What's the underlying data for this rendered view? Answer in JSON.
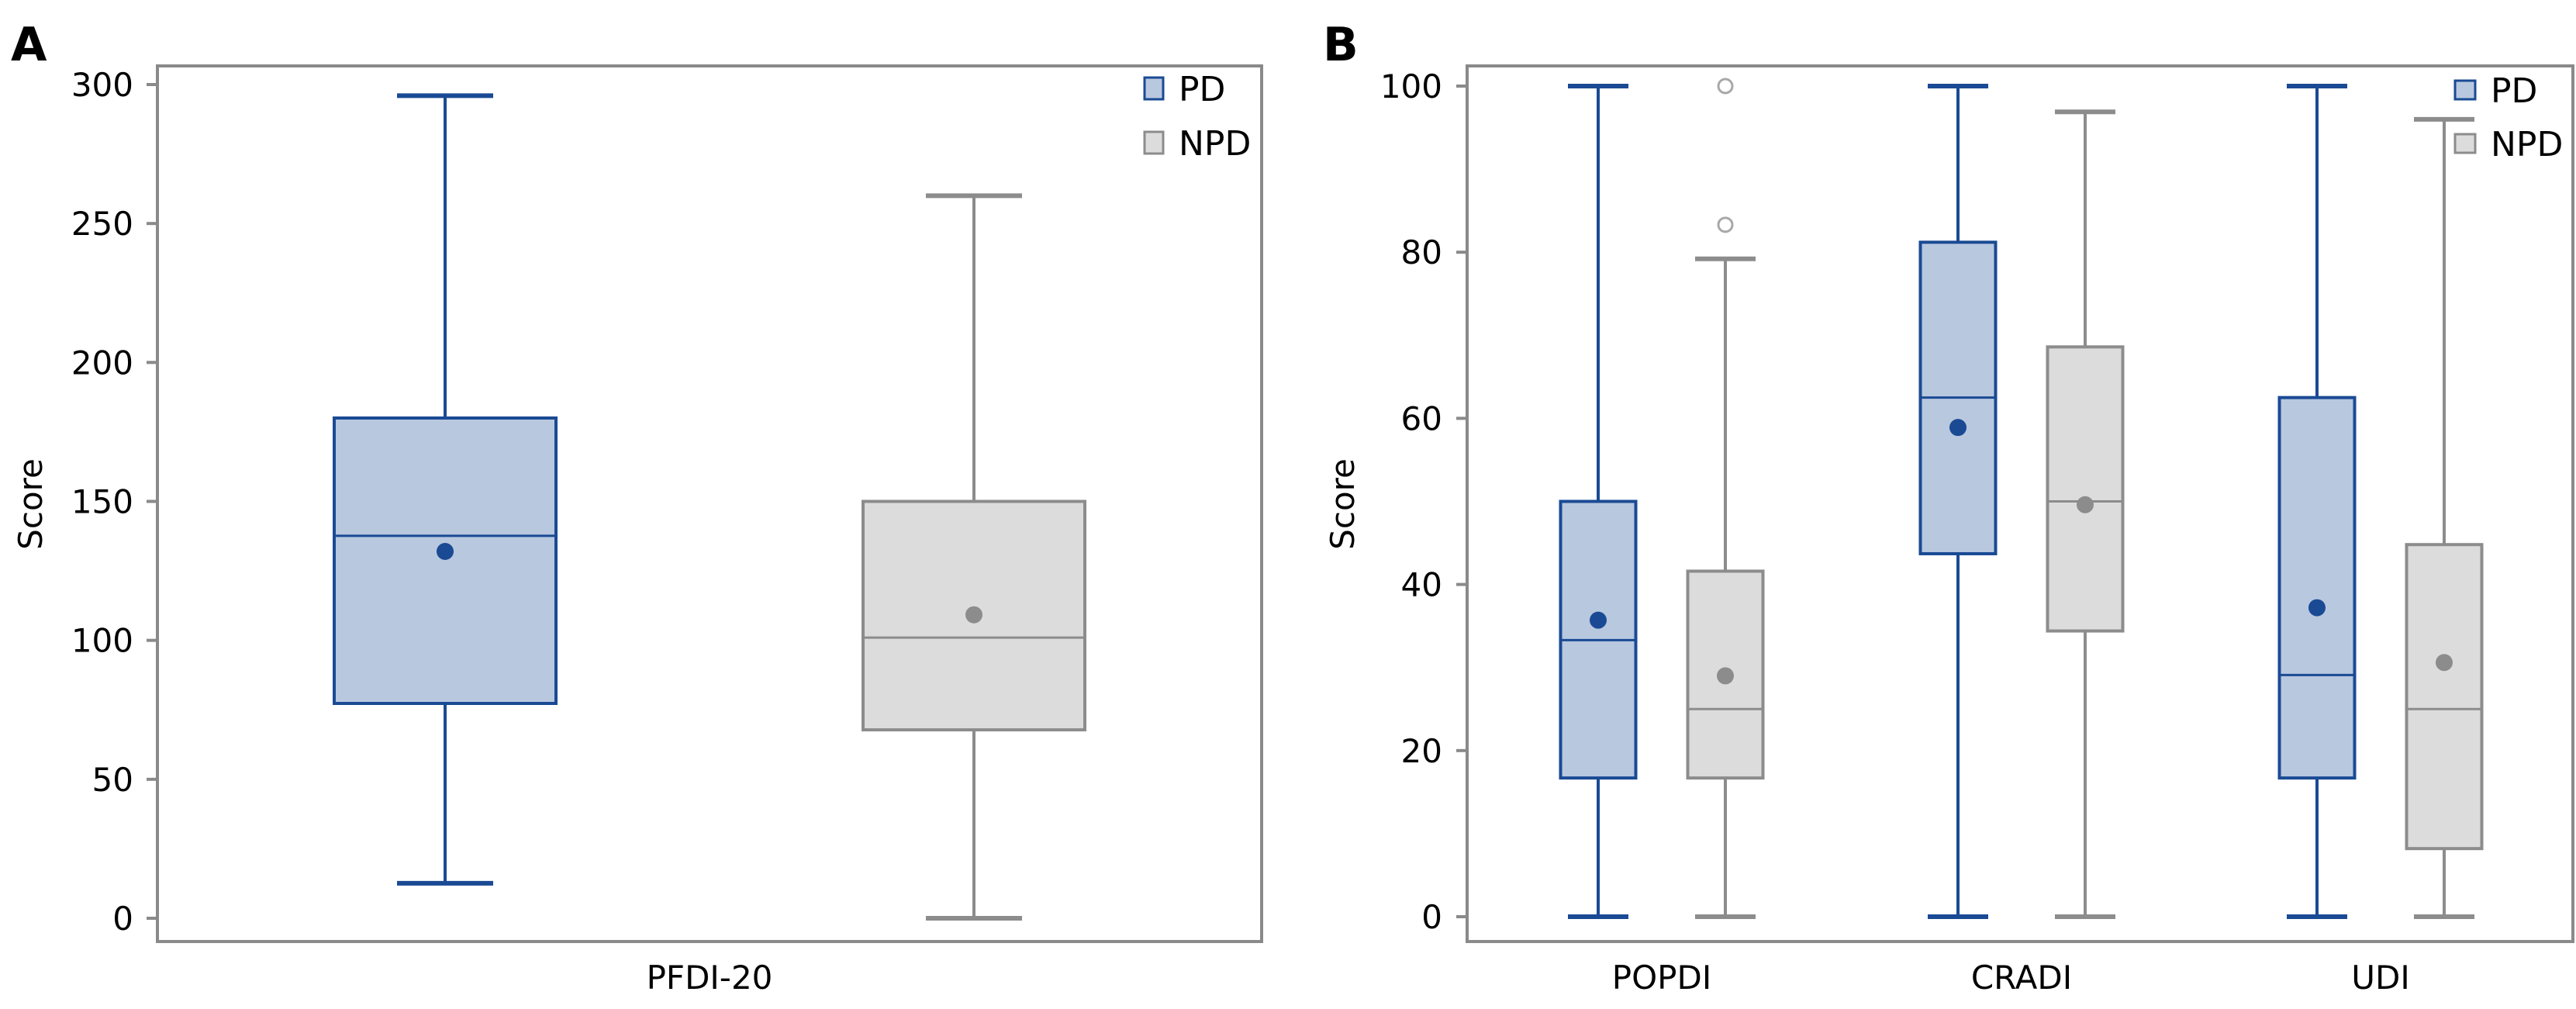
{
  "colors": {
    "pd_stroke": "#1a4a94",
    "pd_fill": "#b8c8df",
    "npd_stroke": "#8c8c8c",
    "npd_fill": "#dcdcdc",
    "frame": "#8a8a8a",
    "outlier": "#a8a8a8"
  },
  "chart_data": [
    {
      "type": "box",
      "panel_label": "A",
      "title": "",
      "xlabel": "",
      "ylabel": "Score",
      "ylim": [
        0,
        300
      ],
      "yticks": [
        "0",
        "50",
        "100",
        "150",
        "200",
        "250",
        "300"
      ],
      "ytick_values": [
        0,
        50,
        100,
        150,
        200,
        250,
        300
      ],
      "categories": [
        "PFDI-20"
      ],
      "legend": {
        "placement": "top-right",
        "entries": [
          "PD",
          "NPD"
        ]
      },
      "series": [
        {
          "name": "PD",
          "boxes": [
            {
              "category": "PFDI-20",
              "whisker_low": 12.6,
              "q1": 77.3,
              "median": 137.6,
              "q3": 180,
              "whisker_high": 296,
              "mean": 132,
              "outliers": []
            }
          ]
        },
        {
          "name": "NPD",
          "boxes": [
            {
              "category": "PFDI-20",
              "whisker_low": 0,
              "q1": 67.8,
              "median": 101,
              "q3": 150,
              "whisker_high": 260,
              "mean": 109.2,
              "outliers": []
            }
          ]
        }
      ]
    },
    {
      "type": "box",
      "panel_label": "B",
      "title": "",
      "xlabel": "",
      "ylabel": "Score",
      "ylim": [
        0,
        100
      ],
      "yticks": [
        "0",
        "20",
        "40",
        "60",
        "80",
        "100"
      ],
      "ytick_values": [
        0,
        20,
        40,
        60,
        80,
        100
      ],
      "categories": [
        "POPDI",
        "CRADI",
        "UDI"
      ],
      "legend": {
        "placement": "top-right",
        "entries": [
          "PD",
          "NPD"
        ]
      },
      "series": [
        {
          "name": "PD",
          "boxes": [
            {
              "category": "POPDI",
              "whisker_low": 0,
              "q1": 16.7,
              "median": 33.3,
              "q3": 50,
              "whisker_high": 100,
              "mean": 35.7,
              "outliers": []
            },
            {
              "category": "CRADI",
              "whisker_low": 0,
              "q1": 43.7,
              "median": 62.5,
              "q3": 81.2,
              "whisker_high": 100,
              "mean": 58.9,
              "outliers": []
            },
            {
              "category": "UDI",
              "whisker_low": 0,
              "q1": 16.7,
              "median": 29.1,
              "q3": 62.5,
              "whisker_high": 100,
              "mean": 37.2,
              "outliers": []
            }
          ]
        },
        {
          "name": "NPD",
          "boxes": [
            {
              "category": "POPDI",
              "whisker_low": 0,
              "q1": 16.7,
              "median": 25,
              "q3": 41.6,
              "whisker_high": 79.2,
              "mean": 29,
              "outliers": [
                100,
                83.3
              ]
            },
            {
              "category": "CRADI",
              "whisker_low": 0,
              "q1": 34.4,
              "median": 50,
              "q3": 68.6,
              "whisker_high": 96.9,
              "mean": 49.6,
              "outliers": []
            },
            {
              "category": "UDI",
              "whisker_low": 0,
              "q1": 8.2,
              "median": 25,
              "q3": 44.8,
              "whisker_high": 96,
              "mean": 30.6,
              "outliers": []
            }
          ]
        }
      ]
    }
  ]
}
